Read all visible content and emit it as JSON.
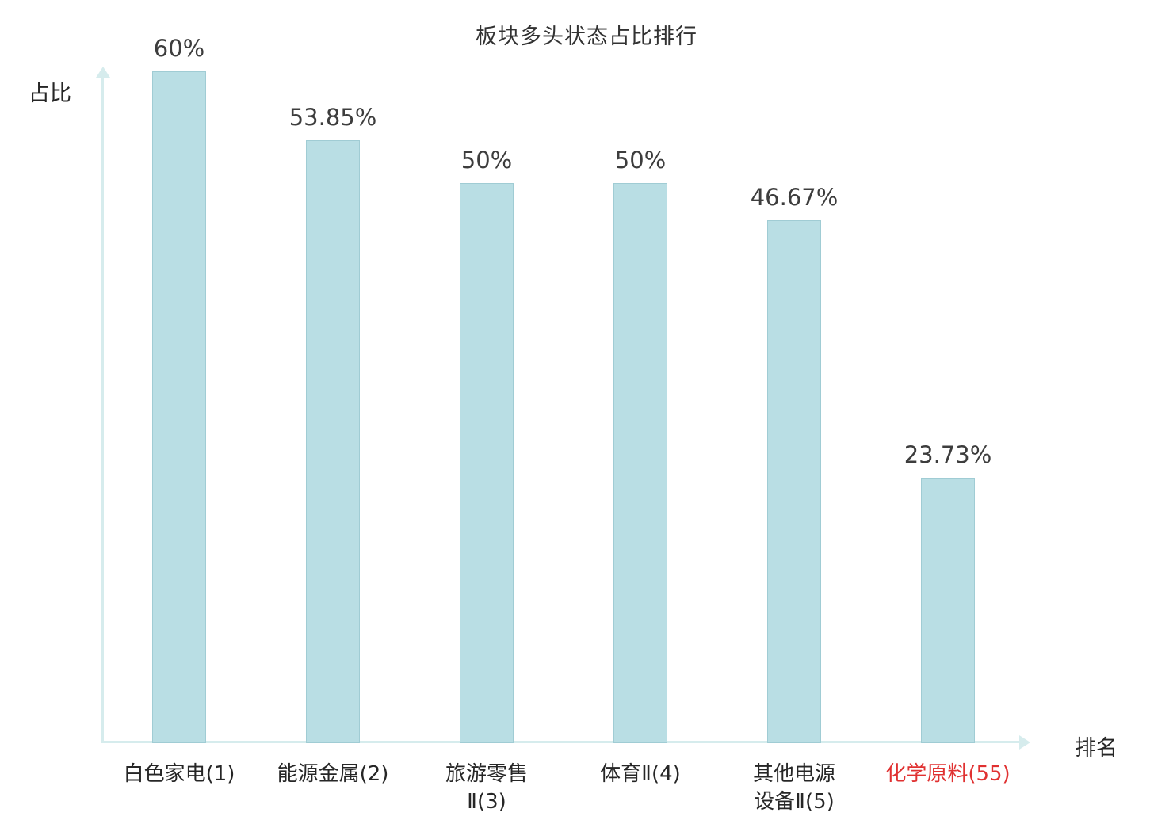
{
  "chart_data": {
    "type": "bar",
    "title": "板块多头状态占比排行",
    "ylabel": "占比",
    "xlabel": "排名",
    "categories": [
      "白色家电(1)",
      "能源金属(2)",
      "旅游零售Ⅱ(3)",
      "体育Ⅱ(4)",
      "其他电源设备Ⅱ(5)",
      "化学原料(55)"
    ],
    "category_lines": [
      [
        "白色家电(1)"
      ],
      [
        "能源金属(2)"
      ],
      [
        "旅游零售",
        "Ⅱ(3)"
      ],
      [
        "体育Ⅱ(4)"
      ],
      [
        "其他电源",
        "设备Ⅱ(5)"
      ],
      [
        "化学原料(55)"
      ]
    ],
    "values": [
      60,
      53.85,
      50,
      50,
      46.67,
      23.73
    ],
    "value_labels": [
      "60%",
      "53.85%",
      "50%",
      "50%",
      "46.67%",
      "23.73%"
    ],
    "highlight_index": 5,
    "ylim": [
      0,
      62
    ],
    "grid": false,
    "legend": false,
    "colors": {
      "bar_fill": "#b9dee4",
      "bar_border": "#a0ccd4",
      "axis": "#d6eced",
      "text": "#3d3d3d",
      "highlight_text": "#e03131"
    }
  }
}
